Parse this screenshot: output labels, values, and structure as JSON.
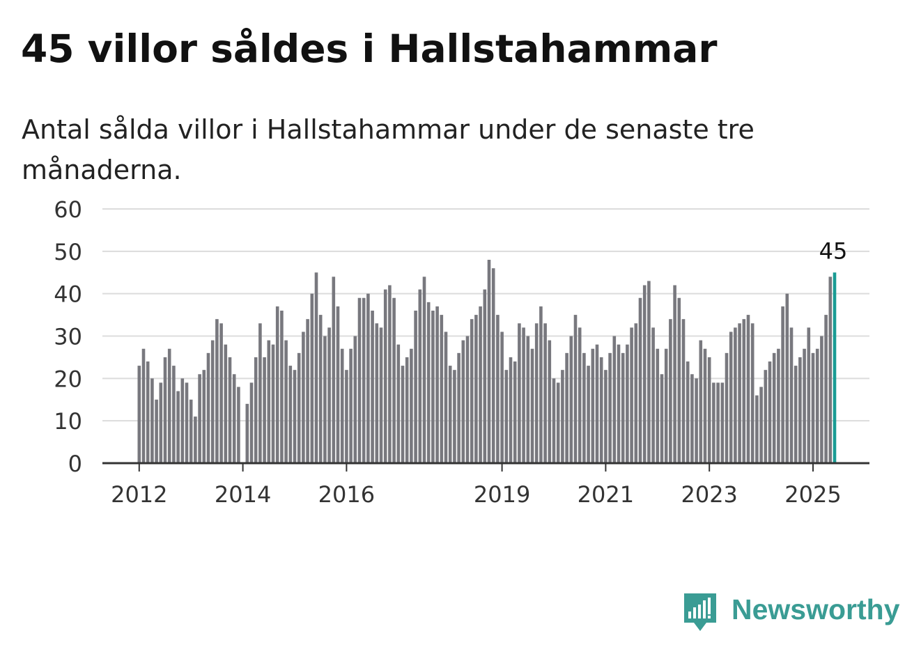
{
  "title": "45 villor såldes i Hallstahammar",
  "subtitle": "Antal sålda villor i Hallstahammar under de senaste tre månaderna.",
  "brand": {
    "name": "Newsworthy",
    "icon": "newsworthy-bar-chart-logo"
  },
  "colors": {
    "bar": "#78787e",
    "highlight": "#1a9c94",
    "grid": "#dcdcdc",
    "axis": "#333333",
    "brand": "#3a9c94"
  },
  "chart_data": {
    "type": "bar",
    "title": "45 villor såldes i Hallstahammar",
    "subtitle": "Antal sålda villor i Hallstahammar under de senaste tre månaderna.",
    "xlabel": "",
    "ylabel": "",
    "ylim": [
      0,
      60
    ],
    "yticks": [
      0,
      10,
      20,
      30,
      40,
      50,
      60
    ],
    "grid": true,
    "start": "2012-01",
    "xticks": [
      "2012",
      "2014",
      "2016",
      "2019",
      "2021",
      "2023",
      "2025"
    ],
    "highlight_label": "45",
    "values": [
      23,
      27,
      24,
      20,
      15,
      19,
      25,
      27,
      23,
      17,
      20,
      19,
      15,
      11,
      21,
      22,
      26,
      29,
      34,
      33,
      28,
      25,
      21,
      18,
      null,
      14,
      19,
      25,
      33,
      25,
      29,
      28,
      37,
      36,
      29,
      23,
      22,
      26,
      31,
      34,
      40,
      45,
      35,
      30,
      32,
      44,
      37,
      27,
      22,
      27,
      30,
      39,
      39,
      40,
      36,
      33,
      32,
      41,
      42,
      39,
      28,
      23,
      25,
      27,
      36,
      41,
      44,
      38,
      36,
      37,
      35,
      31,
      23,
      22,
      26,
      29,
      30,
      34,
      35,
      37,
      41,
      48,
      46,
      35,
      31,
      22,
      25,
      24,
      33,
      32,
      30,
      27,
      33,
      37,
      33,
      29,
      20,
      19,
      22,
      26,
      30,
      35,
      32,
      26,
      23,
      27,
      28,
      25,
      22,
      26,
      30,
      28,
      26,
      28,
      32,
      33,
      39,
      42,
      43,
      32,
      27,
      21,
      27,
      34,
      42,
      39,
      34,
      24,
      21,
      20,
      29,
      27,
      25,
      19,
      19,
      19,
      26,
      31,
      32,
      33,
      34,
      35,
      33,
      16,
      18,
      22,
      24,
      26,
      27,
      37,
      40,
      32,
      23,
      25,
      27,
      32,
      26,
      27,
      30,
      35,
      44,
      45
    ]
  }
}
